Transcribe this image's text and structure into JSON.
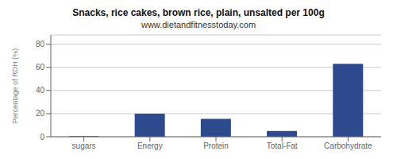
{
  "chart_data": {
    "type": "bar",
    "title": "Snacks, rice cakes, brown rice, plain, unsalted per 100g",
    "subtitle": "www.dietandfitnesstoday.com",
    "categories": [
      "sugars",
      "Energy",
      "Protein",
      "Total-Fat",
      "Carbohydrate"
    ],
    "values": [
      0.5,
      20,
      15.5,
      5,
      63
    ],
    "color": "#2e4a8e",
    "ylabel": "Percentage of RDH (%)",
    "ylim": [
      0,
      88
    ],
    "yticks": [
      0,
      20,
      40,
      60,
      80
    ],
    "grid": true
  }
}
